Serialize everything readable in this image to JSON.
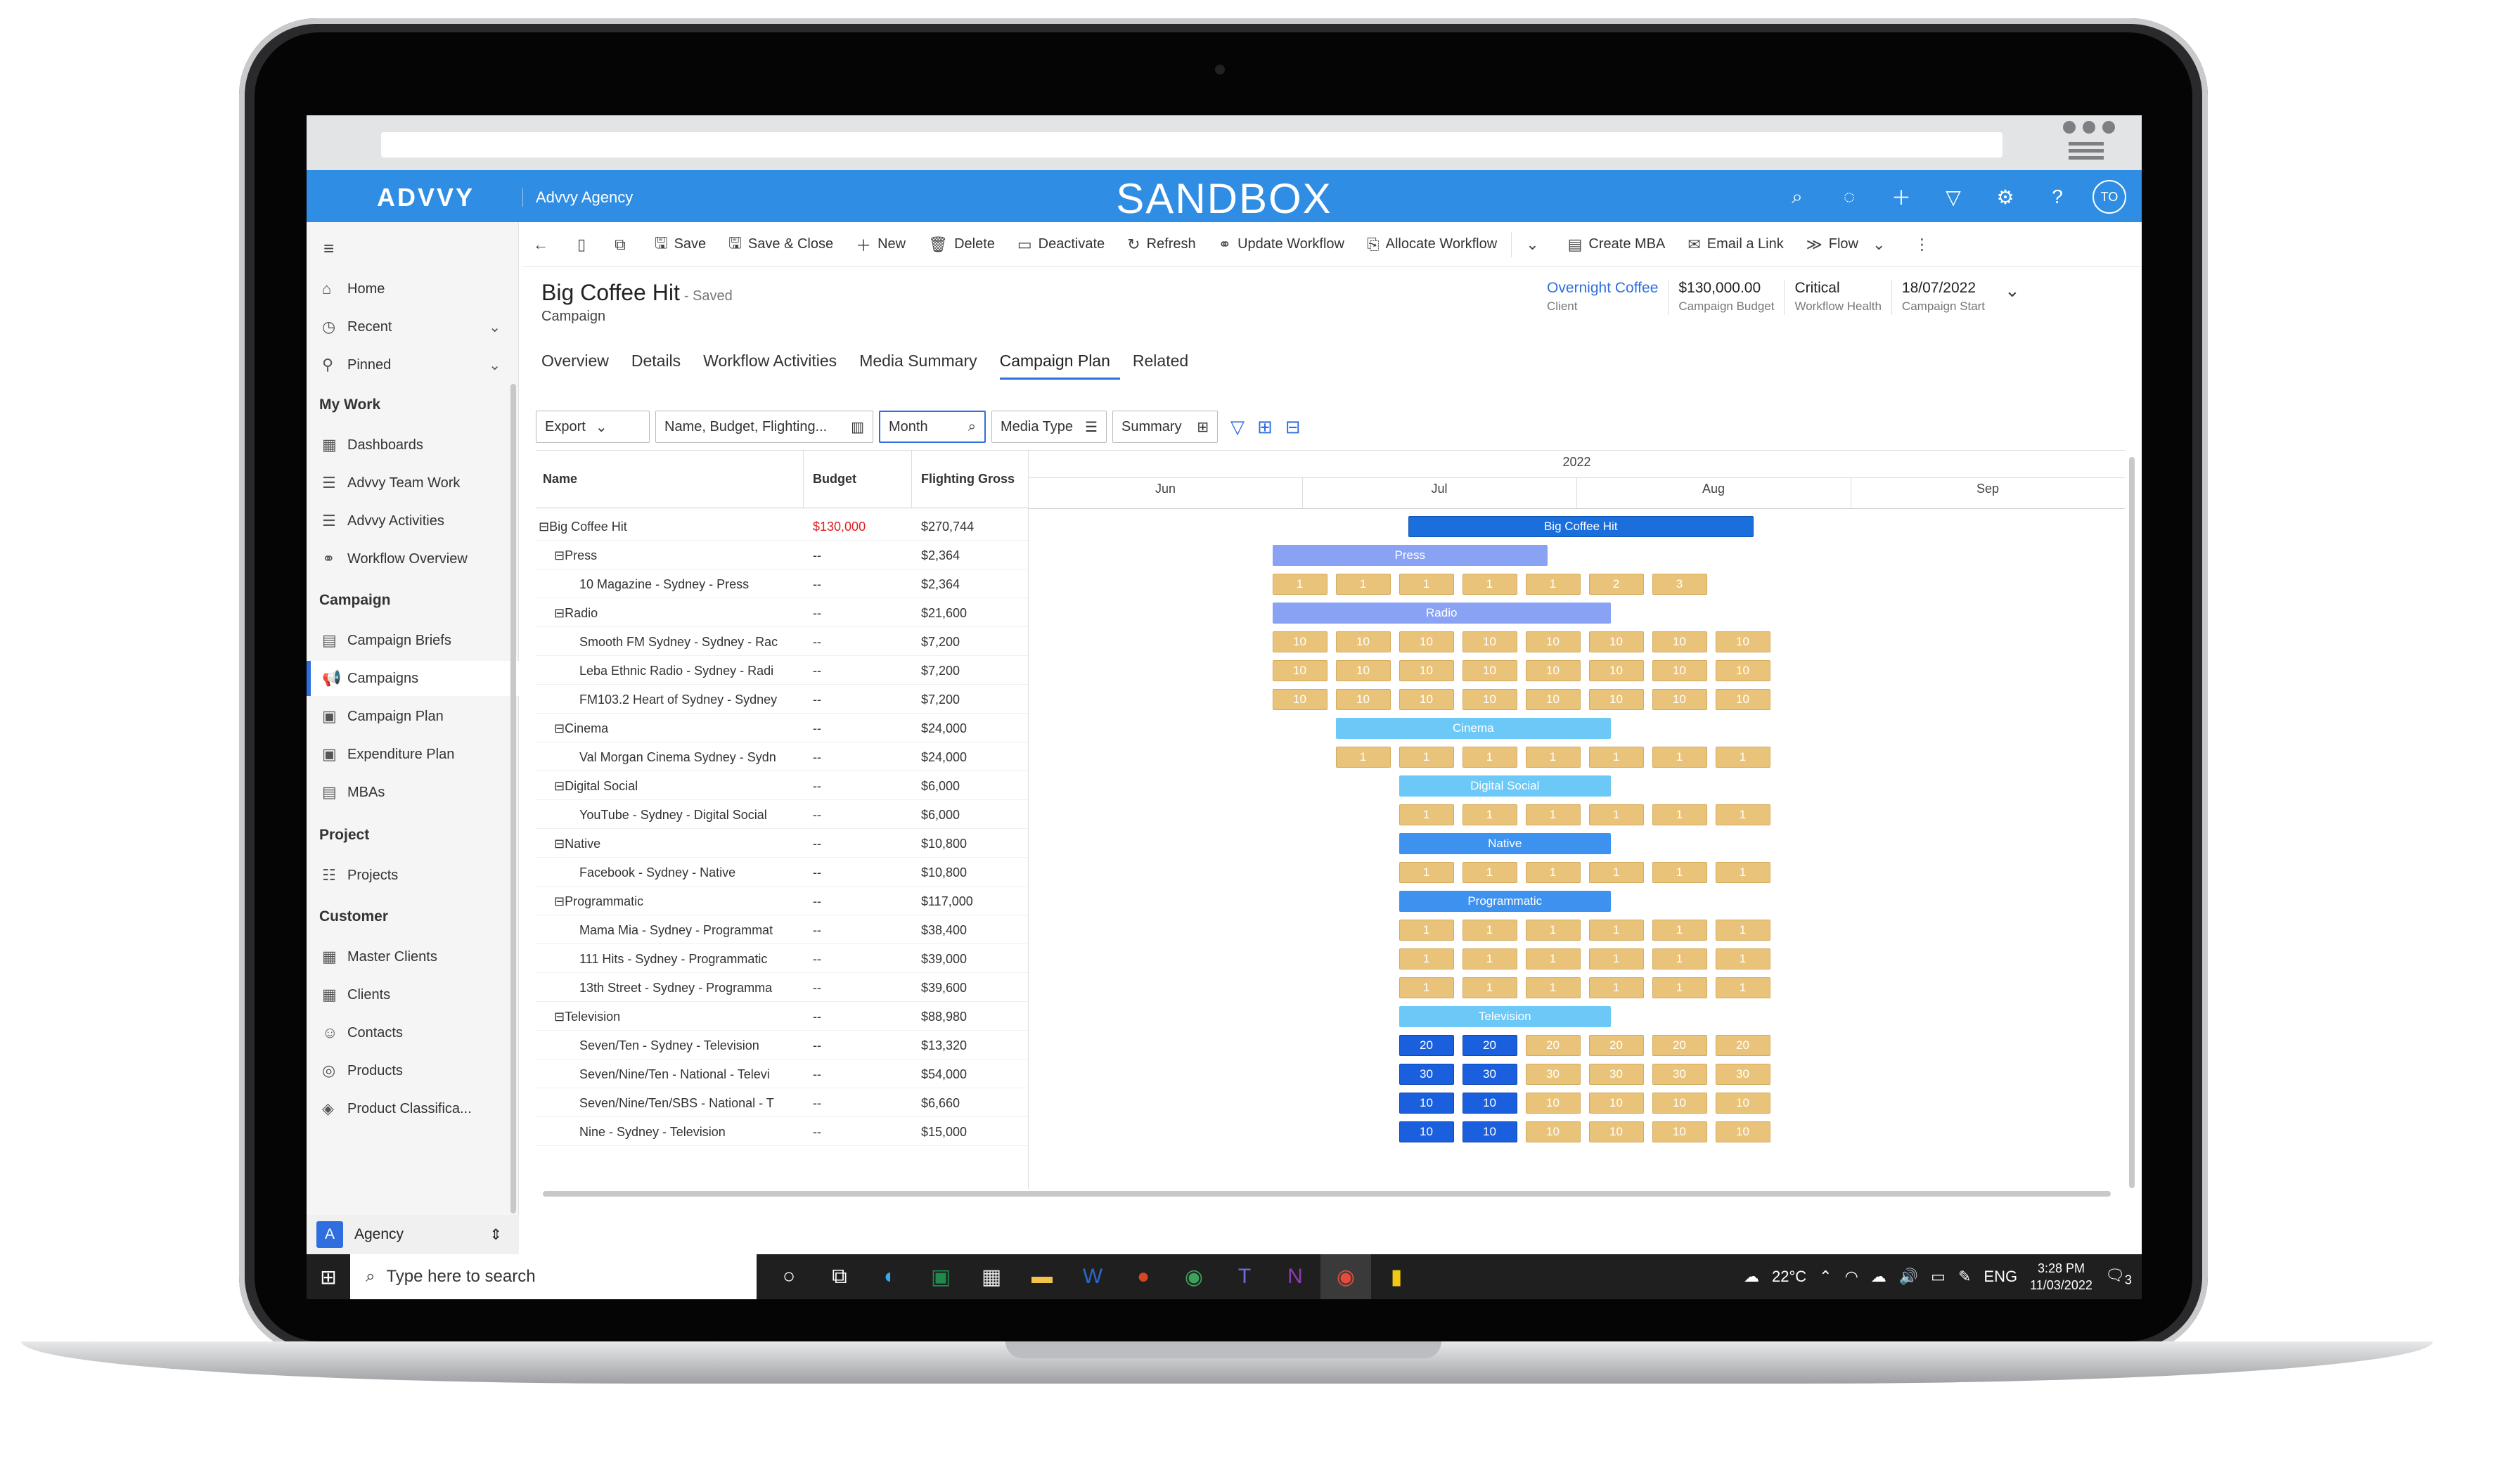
{
  "app": {
    "logo": "ADVVY",
    "agency": "Advvy Agency",
    "environment": "SANDBOX",
    "user_initials": "TO"
  },
  "sidebar": {
    "items": [
      {
        "label": "Home",
        "icon": "home-icon"
      },
      {
        "label": "Recent",
        "icon": "clock-icon"
      },
      {
        "label": "Pinned",
        "icon": "pin-icon"
      }
    ],
    "sections": [
      {
        "title": "My Work",
        "items": [
          "Dashboards",
          "Advvy Team Work",
          "Advvy Activities",
          "Workflow Overview"
        ]
      },
      {
        "title": "Campaign",
        "items": [
          "Campaign Briefs",
          "Campaigns",
          "Campaign Plan",
          "Expenditure Plan",
          "MBAs"
        ]
      },
      {
        "title": "Project",
        "items": [
          "Projects"
        ]
      },
      {
        "title": "Customer",
        "items": [
          "Master Clients",
          "Clients",
          "Contacts",
          "Products",
          "Product Classifica..."
        ]
      }
    ],
    "area_initial": "A",
    "area": "Agency"
  },
  "toolbar": {
    "buttons": [
      "Save",
      "Save & Close",
      "New",
      "Delete",
      "Deactivate",
      "Refresh",
      "Update Workflow",
      "Allocate Workflow",
      "Create MBA",
      "Email a Link",
      "Flow"
    ]
  },
  "record": {
    "title": "Big Coffee Hit",
    "status": "- Saved",
    "type": "Campaign",
    "fields": [
      {
        "value": "Overnight Coffee",
        "label": "Client"
      },
      {
        "value": "$130,000.00",
        "label": "Campaign Budget"
      },
      {
        "value": "Critical",
        "label": "Workflow Health"
      },
      {
        "value": "18/07/2022",
        "label": "Campaign Start"
      }
    ]
  },
  "tabs": [
    "Overview",
    "Details",
    "Workflow Activities",
    "Media Summary",
    "Campaign Plan",
    "Related"
  ],
  "filters": {
    "export": "Export",
    "fields": "Name, Budget, Flighting...",
    "month": "Month",
    "media_type": "Media Type",
    "summary": "Summary"
  },
  "grid": {
    "headers": {
      "name": "Name",
      "budget": "Budget",
      "gross": "Flighting Gross"
    },
    "year": "2022",
    "months": [
      "Jun",
      "Jul",
      "Aug",
      "Sep"
    ],
    "rows": [
      {
        "name": "Big Coffee Hit",
        "budget": "$130,000",
        "gross": "$270,744",
        "level": 0,
        "collapse": true
      },
      {
        "name": "Press",
        "budget": "--",
        "gross": "$2,364",
        "level": 1,
        "collapse": true
      },
      {
        "name": "10 Magazine - Sydney - Press",
        "budget": "--",
        "gross": "$2,364",
        "level": 2
      },
      {
        "name": "Radio",
        "budget": "--",
        "gross": "$21,600",
        "level": 1,
        "collapse": true
      },
      {
        "name": "Smooth FM Sydney - Sydney - Rac",
        "budget": "--",
        "gross": "$7,200",
        "level": 2
      },
      {
        "name": "Leba Ethnic Radio - Sydney - Radi",
        "budget": "--",
        "gross": "$7,200",
        "level": 2
      },
      {
        "name": "FM103.2 Heart of Sydney - Sydney",
        "budget": "--",
        "gross": "$7,200",
        "level": 2
      },
      {
        "name": "Cinema",
        "budget": "--",
        "gross": "$24,000",
        "level": 1,
        "collapse": true
      },
      {
        "name": "Val Morgan Cinema Sydney - Sydn",
        "budget": "--",
        "gross": "$24,000",
        "level": 2
      },
      {
        "name": "Digital Social",
        "budget": "--",
        "gross": "$6,000",
        "level": 1,
        "collapse": true
      },
      {
        "name": "YouTube - Sydney - Digital Social",
        "budget": "--",
        "gross": "$6,000",
        "level": 2
      },
      {
        "name": "Native",
        "budget": "--",
        "gross": "$10,800",
        "level": 1,
        "collapse": true
      },
      {
        "name": "Facebook - Sydney - Native",
        "budget": "--",
        "gross": "$10,800",
        "level": 2
      },
      {
        "name": "Programmatic",
        "budget": "--",
        "gross": "$117,000",
        "level": 1,
        "collapse": true
      },
      {
        "name": "Mama Mia - Sydney - Programmat",
        "budget": "--",
        "gross": "$38,400",
        "level": 2
      },
      {
        "name": "111 Hits - Sydney - Programmatic",
        "budget": "--",
        "gross": "$39,000",
        "level": 2
      },
      {
        "name": "13th Street - Sydney - Programma",
        "budget": "--",
        "gross": "$39,600",
        "level": 2
      },
      {
        "name": "Television",
        "budget": "--",
        "gross": "$88,980",
        "level": 1,
        "collapse": true
      },
      {
        "name": "Seven/Ten - Sydney - Television",
        "budget": "--",
        "gross": "$13,320",
        "level": 2
      },
      {
        "name": "Seven/Nine/Ten - National - Televi",
        "budget": "--",
        "gross": "$54,000",
        "level": 2
      },
      {
        "name": "Seven/Nine/Ten/SBS - National - T",
        "budget": "--",
        "gross": "$6,660",
        "level": 2
      },
      {
        "name": "Nine - Sydney - Television",
        "budget": "--",
        "gross": "$15,000",
        "level": 2
      }
    ],
    "bars": [
      {
        "row": 0,
        "label": "Big Coffee Hit",
        "style": "campaign",
        "start": 6,
        "end": 11.45
      },
      {
        "row": 1,
        "label": "Press",
        "style": "mt1",
        "start": 3.85,
        "end": 8.2
      },
      {
        "row": 2,
        "cells": [
          "1",
          "1",
          "1",
          "1",
          "1",
          "2",
          "3"
        ],
        "start": 3.85
      },
      {
        "row": 3,
        "label": "Radio",
        "style": "mt1",
        "start": 3.85,
        "end": 9.2
      },
      {
        "row": 4,
        "cells": [
          "10",
          "10",
          "10",
          "10",
          "10",
          "10",
          "10",
          "10"
        ],
        "start": 3.85
      },
      {
        "row": 5,
        "cells": [
          "10",
          "10",
          "10",
          "10",
          "10",
          "10",
          "10",
          "10"
        ],
        "start": 3.85
      },
      {
        "row": 6,
        "cells": [
          "10",
          "10",
          "10",
          "10",
          "10",
          "10",
          "10",
          "10"
        ],
        "start": 3.85
      },
      {
        "row": 7,
        "label": "Cinema",
        "style": "mt2",
        "start": 4.85,
        "end": 9.2
      },
      {
        "row": 8,
        "cells": [
          "1",
          "1",
          "1",
          "1",
          "1",
          "1",
          "1"
        ],
        "start": 4.85
      },
      {
        "row": 9,
        "label": "Digital Social",
        "style": "mt2",
        "start": 5.85,
        "end": 9.2
      },
      {
        "row": 10,
        "cells": [
          "1",
          "1",
          "1",
          "1",
          "1",
          "1"
        ],
        "start": 5.85
      },
      {
        "row": 11,
        "label": "Native",
        "style": "mt3",
        "start": 5.85,
        "end": 9.2
      },
      {
        "row": 12,
        "cells": [
          "1",
          "1",
          "1",
          "1",
          "1",
          "1"
        ],
        "start": 5.85
      },
      {
        "row": 13,
        "label": "Programmatic",
        "style": "mt3",
        "start": 5.85,
        "end": 9.2
      },
      {
        "row": 14,
        "cells": [
          "1",
          "1",
          "1",
          "1",
          "1",
          "1"
        ],
        "start": 5.85
      },
      {
        "row": 15,
        "cells": [
          "1",
          "1",
          "1",
          "1",
          "1",
          "1"
        ],
        "start": 5.85
      },
      {
        "row": 16,
        "cells": [
          "1",
          "1",
          "1",
          "1",
          "1",
          "1"
        ],
        "start": 5.85
      },
      {
        "row": 17,
        "label": "Television",
        "style": "mt2",
        "start": 5.85,
        "end": 9.2
      },
      {
        "row": 18,
        "cells": [
          "20",
          "20",
          "20",
          "20",
          "20",
          "20"
        ],
        "start": 5.85,
        "blue": 2
      },
      {
        "row": 19,
        "cells": [
          "30",
          "30",
          "30",
          "30",
          "30",
          "30"
        ],
        "start": 5.85,
        "blue": 2
      },
      {
        "row": 20,
        "cells": [
          "10",
          "10",
          "10",
          "10",
          "10",
          "10"
        ],
        "start": 5.85,
        "blue": 2
      },
      {
        "row": 21,
        "cells": [
          "10",
          "10",
          "10",
          "10",
          "10",
          "10"
        ],
        "start": 5.85,
        "blue": 2
      }
    ]
  },
  "taskbar": {
    "search": "Type here to search",
    "weather": "22°C",
    "lang": "ENG",
    "time": "3:28 PM",
    "date": "11/03/2022",
    "notifications": "3"
  }
}
